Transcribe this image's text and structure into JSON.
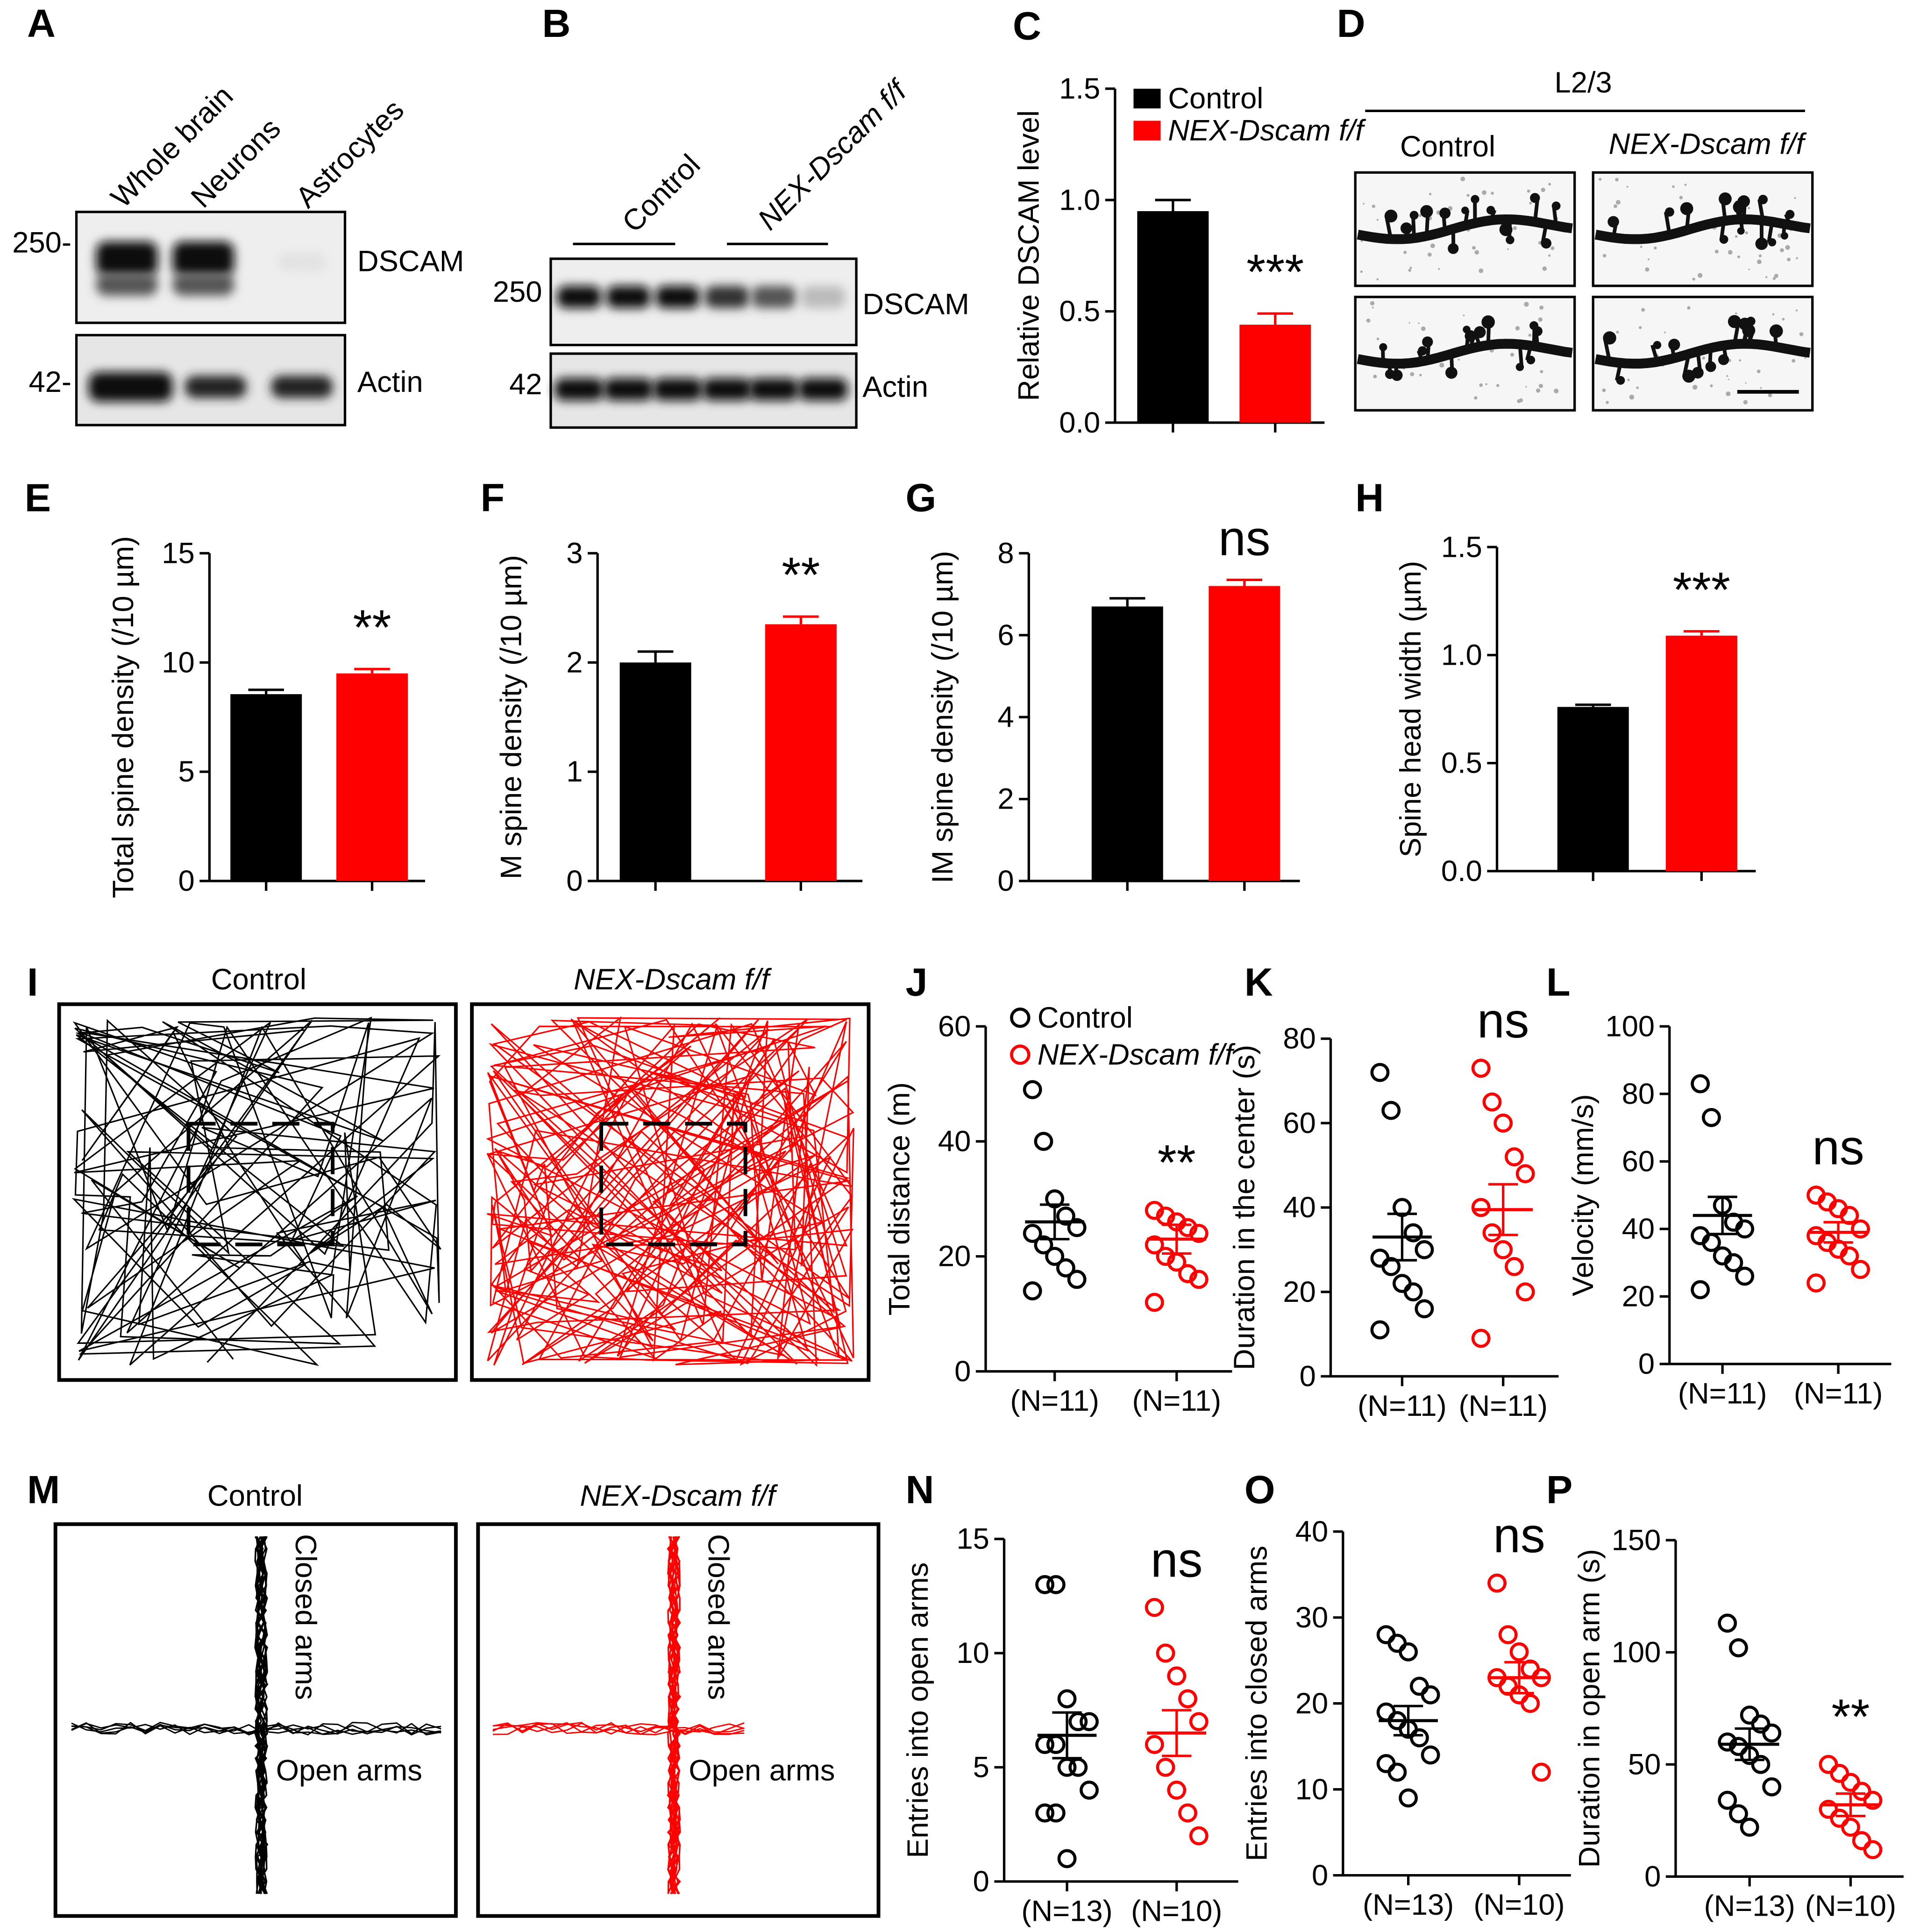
{
  "panels": {
    "A": {
      "letter": "A",
      "lanes": [
        "Whole brain",
        "Neurons",
        "Astrocytes"
      ],
      "markers": [
        "250-",
        "42-"
      ],
      "proteins": [
        "DSCAM",
        "Actin"
      ]
    },
    "B": {
      "letter": "B",
      "groups": [
        "Control",
        "NEX-Dscam f/f"
      ],
      "markers": [
        "250",
        "42"
      ],
      "proteins": [
        "DSCAM",
        "Actin"
      ]
    },
    "D": {
      "letter": "D",
      "region": "L2/3",
      "groups": [
        "Control",
        "NEX-Dscam f/f"
      ]
    },
    "I": {
      "letter": "I",
      "groups": [
        "Control",
        "NEX-Dscam f/f"
      ]
    },
    "M": {
      "letter": "M",
      "groups": [
        "Control",
        "NEX-Dscam f/f"
      ],
      "arm_labels": [
        "Closed arms",
        "Open arms"
      ]
    }
  },
  "chart_data": [
    {
      "panel": "C",
      "type": "bar",
      "ylabel": "Relative DSCAM level",
      "ylim": [
        0,
        1.5
      ],
      "yticks": [
        {
          "value": 0,
          "label": "0.0"
        },
        0.5,
        {
          "value": 1,
          "label": "1.0"
        },
        1.5
      ],
      "values": [
        0.95,
        0.44
      ],
      "errors": [
        0.05,
        0.05
      ],
      "colors": [
        "#000000",
        "#ff0000"
      ],
      "annotation": "***",
      "legend": [
        "Control",
        "NEX-Dscam f/f"
      ]
    },
    {
      "panel": "E",
      "type": "bar",
      "ylabel": "Total spine density (/10 µm)",
      "ylim": [
        0,
        15
      ],
      "yticks": [
        0,
        5,
        10,
        15
      ],
      "values": [
        8.55,
        9.5
      ],
      "errors": [
        0.2,
        0.2
      ],
      "colors": [
        "#000000",
        "#ff0000"
      ],
      "annotation": "**"
    },
    {
      "panel": "F",
      "type": "bar",
      "ylabel": "M spine density (/10 µm)",
      "ylim": [
        0,
        3
      ],
      "yticks": [
        0,
        1,
        2,
        3
      ],
      "values": [
        2.0,
        2.35
      ],
      "errors": [
        0.1,
        0.07
      ],
      "colors": [
        "#000000",
        "#ff0000"
      ],
      "annotation": "**"
    },
    {
      "panel": "G",
      "type": "bar",
      "ylabel": "IM spine density (/10 µm)",
      "ylim": [
        0,
        8
      ],
      "yticks": [
        0,
        2,
        4,
        6,
        8
      ],
      "values": [
        6.7,
        7.2
      ],
      "errors": [
        0.2,
        0.15
      ],
      "colors": [
        "#000000",
        "#ff0000"
      ],
      "annotation": "ns"
    },
    {
      "panel": "H",
      "type": "bar",
      "ylabel": "Spine head width (µm)",
      "ylim": [
        0,
        1.5
      ],
      "yticks": [
        {
          "value": 0,
          "label": "0.0"
        },
        0.5,
        {
          "value": 1,
          "label": "1.0"
        },
        1.5
      ],
      "values": [
        0.76,
        1.09
      ],
      "errors": [
        0.01,
        0.02
      ],
      "colors": [
        "#000000",
        "#ff0000"
      ],
      "annotation": "***"
    },
    {
      "panel": "J",
      "type": "strip",
      "ylabel": "Total distance (m)",
      "ylim": [
        0,
        60
      ],
      "yticks": [
        0,
        20,
        40,
        60
      ],
      "categories": [
        "(N=11)",
        "(N=11)"
      ],
      "groups": [
        {
          "color": "#000000",
          "values": [
            49,
            40,
            30,
            27,
            25,
            24,
            22,
            20,
            18,
            16,
            14
          ],
          "mean": 26,
          "sem": 3
        },
        {
          "color": "#ff0000",
          "values": [
            28,
            27,
            26,
            25,
            24,
            22,
            20,
            19,
            17,
            16,
            12
          ],
          "mean": 23,
          "sem": 2.5
        }
      ],
      "annotation": "**",
      "legend": [
        "Control",
        "NEX-Dscam f/f"
      ]
    },
    {
      "panel": "K",
      "type": "strip",
      "ylabel": "Duration in the center (s)",
      "ylim": [
        0,
        80
      ],
      "yticks": [
        0,
        20,
        40,
        60,
        80
      ],
      "categories": [
        "(N=11)",
        "(N=11)"
      ],
      "groups": [
        {
          "color": "#000000",
          "values": [
            72,
            63,
            40,
            34,
            30,
            28,
            26,
            22,
            20,
            16,
            11
          ],
          "mean": 33,
          "sem": 5.5
        },
        {
          "color": "#ff0000",
          "values": [
            73,
            65,
            60,
            52,
            48,
            40,
            34,
            30,
            26,
            20,
            9
          ],
          "mean": 39.5,
          "sem": 6
        }
      ],
      "annotation": "ns"
    },
    {
      "panel": "L",
      "type": "strip",
      "ylabel": "Velocity (mm/s)",
      "ylim": [
        0,
        100
      ],
      "yticks": [
        0,
        20,
        40,
        60,
        80,
        100
      ],
      "categories": [
        "(N=11)",
        "(N=11)"
      ],
      "groups": [
        {
          "color": "#000000",
          "values": [
            83,
            73,
            47,
            42,
            40,
            38,
            36,
            32,
            30,
            26,
            22
          ],
          "mean": 44,
          "sem": 5.5
        },
        {
          "color": "#ff0000",
          "values": [
            50,
            48,
            46,
            44,
            40,
            38,
            36,
            34,
            32,
            28,
            24
          ],
          "mean": 39,
          "sem": 3
        }
      ],
      "annotation": "ns"
    },
    {
      "panel": "N",
      "type": "strip",
      "ylabel": "Entries into open arms",
      "ylim": [
        0,
        15
      ],
      "yticks": [
        0,
        5,
        10,
        15
      ],
      "categories": [
        "(N=13)",
        "(N=10)"
      ],
      "groups": [
        {
          "color": "#000000",
          "values": [
            13,
            13,
            8,
            7,
            7,
            6,
            6,
            5,
            5,
            4,
            3,
            3,
            1
          ],
          "mean": 6.4,
          "sem": 1
        },
        {
          "color": "#ff0000",
          "values": [
            12,
            10,
            9,
            8,
            7,
            6,
            5,
            4,
            3,
            2
          ],
          "mean": 6.5,
          "sem": 1
        }
      ],
      "annotation": "ns"
    },
    {
      "panel": "O",
      "type": "strip",
      "ylabel": "Entries into closed arms",
      "ylim": [
        0,
        40
      ],
      "yticks": [
        0,
        10,
        20,
        30,
        40
      ],
      "categories": [
        "(N=13)",
        "(N=10)"
      ],
      "groups": [
        {
          "color": "#000000",
          "values": [
            28,
            27,
            26,
            22,
            21,
            19,
            18,
            17,
            16,
            14,
            13,
            12,
            9
          ],
          "mean": 18,
          "sem": 1.7
        },
        {
          "color": "#ff0000",
          "values": [
            34,
            28,
            26,
            24,
            23,
            23,
            22,
            21,
            20,
            12
          ],
          "mean": 23,
          "sem": 1.8
        }
      ],
      "annotation": "ns"
    },
    {
      "panel": "P",
      "type": "strip",
      "ylabel": "Duration in open arm (s)",
      "ylim": [
        0,
        150
      ],
      "yticks": [
        0,
        50,
        100,
        150
      ],
      "categories": [
        "(N=13)",
        "(N=10)"
      ],
      "groups": [
        {
          "color": "#000000",
          "values": [
            113,
            102,
            72,
            68,
            64,
            60,
            58,
            54,
            50,
            40,
            34,
            28,
            22
          ],
          "mean": 59,
          "sem": 7
        },
        {
          "color": "#ff0000",
          "values": [
            50,
            46,
            42,
            38,
            34,
            30,
            26,
            22,
            16,
            12
          ],
          "mean": 32,
          "sem": 5
        }
      ],
      "annotation": "**"
    }
  ]
}
